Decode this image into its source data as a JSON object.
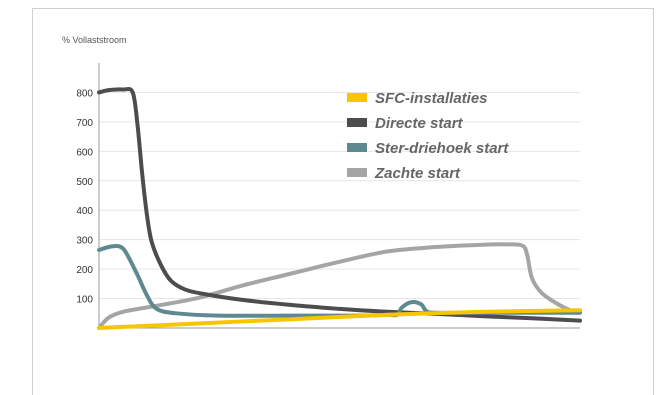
{
  "chart_data": {
    "type": "line",
    "title": "",
    "xlabel": "",
    "ylabel": "% Vollaststroom",
    "ylim": [
      0,
      900
    ],
    "xlim": [
      0,
      100
    ],
    "yticks": [
      100,
      200,
      300,
      400,
      500,
      600,
      700,
      800
    ],
    "grid": true,
    "legend_position": "top-right",
    "series": [
      {
        "name": "SFC-installaties",
        "color": "#f7c600",
        "points": [
          [
            0,
            0
          ],
          [
            20,
            15
          ],
          [
            40,
            30
          ],
          [
            60,
            45
          ],
          [
            80,
            55
          ],
          [
            100,
            60
          ]
        ]
      },
      {
        "name": "Directe start",
        "color": "#4d4d4d",
        "points": [
          [
            0,
            800
          ],
          [
            2,
            808
          ],
          [
            5,
            810
          ],
          [
            7,
            800
          ],
          [
            8,
            690
          ],
          [
            9,
            520
          ],
          [
            10,
            380
          ],
          [
            11,
            290
          ],
          [
            13,
            210
          ],
          [
            15,
            160
          ],
          [
            18,
            130
          ],
          [
            22,
            115
          ],
          [
            30,
            95
          ],
          [
            40,
            78
          ],
          [
            50,
            65
          ],
          [
            60,
            55
          ],
          [
            70,
            48
          ],
          [
            80,
            40
          ],
          [
            90,
            33
          ],
          [
            100,
            25
          ]
        ]
      },
      {
        "name": "Ster-driehoek start",
        "color": "#5e8991",
        "points": [
          [
            0,
            265
          ],
          [
            2,
            275
          ],
          [
            4,
            278
          ],
          [
            5,
            270
          ],
          [
            6,
            245
          ],
          [
            8,
            180
          ],
          [
            10,
            110
          ],
          [
            12,
            65
          ],
          [
            16,
            50
          ],
          [
            25,
            42
          ],
          [
            40,
            42
          ],
          [
            55,
            42
          ],
          [
            60,
            45
          ],
          [
            62,
            45
          ],
          [
            63,
            70
          ],
          [
            65,
            88
          ],
          [
            67,
            80
          ],
          [
            68,
            58
          ],
          [
            70,
            52
          ],
          [
            80,
            52
          ],
          [
            90,
            52
          ],
          [
            100,
            52
          ]
        ]
      },
      {
        "name": "Zachte start",
        "color": "#a5a5a5",
        "points": [
          [
            0,
            0
          ],
          [
            2,
            35
          ],
          [
            5,
            55
          ],
          [
            10,
            70
          ],
          [
            20,
            100
          ],
          [
            30,
            145
          ],
          [
            40,
            185
          ],
          [
            50,
            225
          ],
          [
            60,
            260
          ],
          [
            70,
            275
          ],
          [
            80,
            283
          ],
          [
            85,
            284
          ],
          [
            88,
            280
          ],
          [
            89,
            250
          ],
          [
            90,
            170
          ],
          [
            92,
            120
          ],
          [
            95,
            85
          ],
          [
            98,
            60
          ],
          [
            100,
            55
          ]
        ]
      }
    ]
  }
}
